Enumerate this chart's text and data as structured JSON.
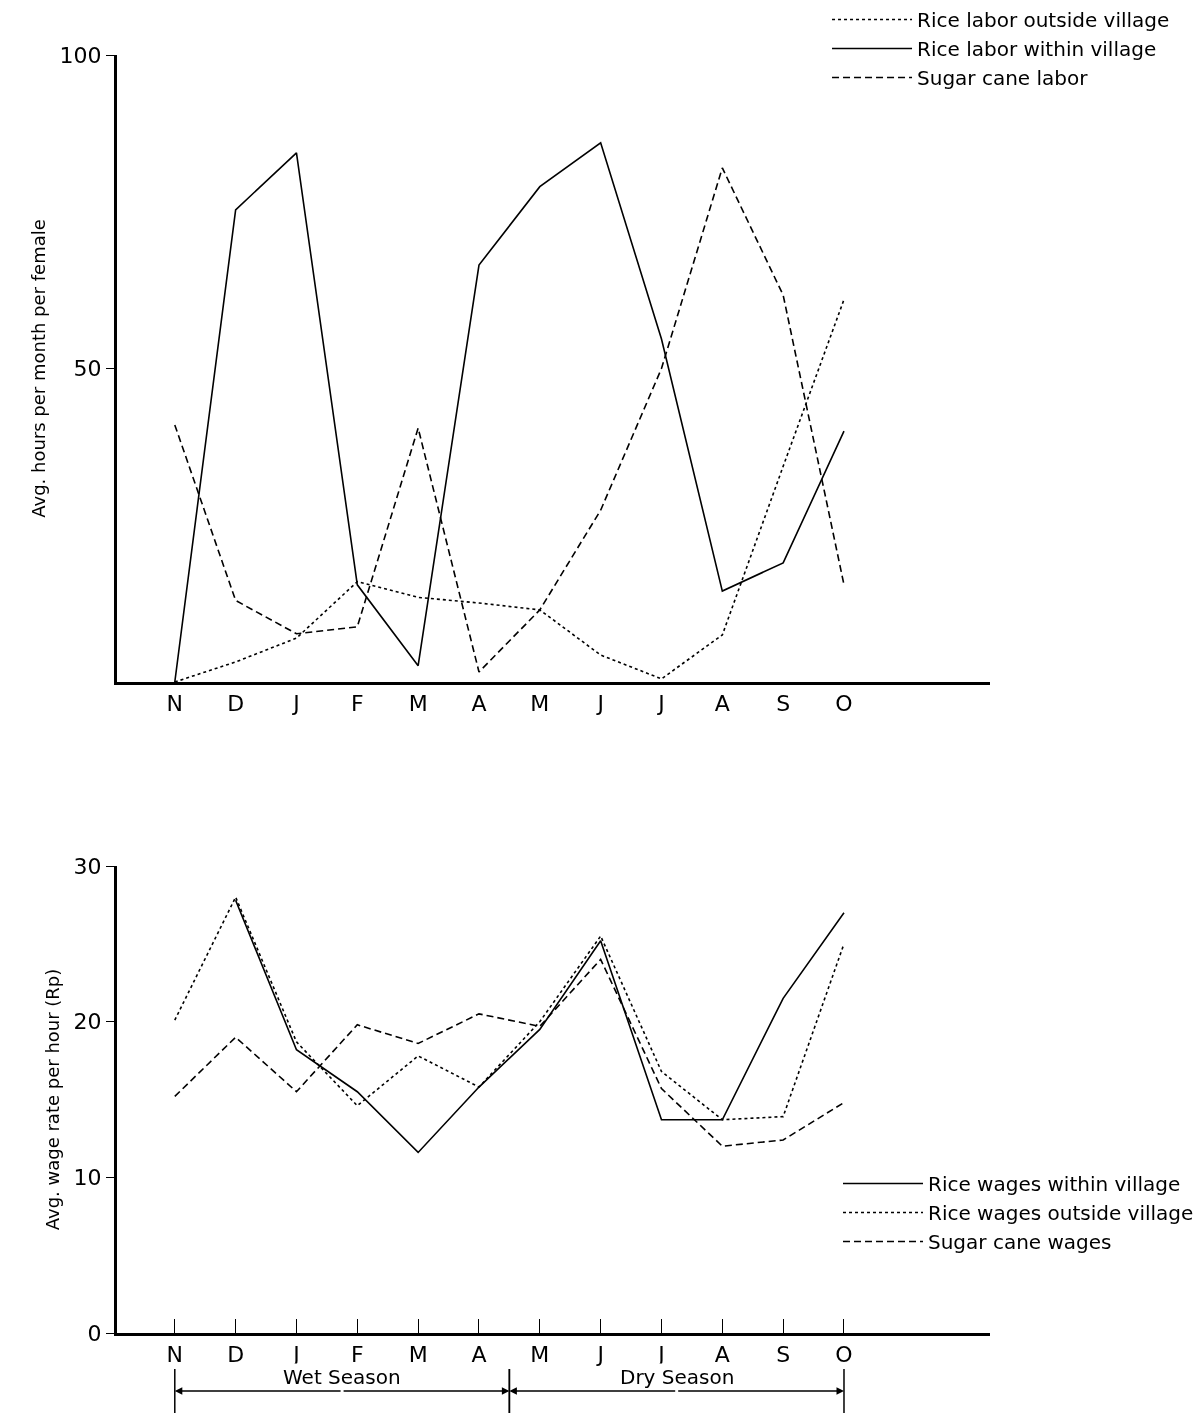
{
  "chart_data": [
    {
      "type": "line",
      "ylabel": "Avg. hours per month per female",
      "categories": [
        "N",
        "D",
        "J",
        "F",
        "M",
        "A",
        "M",
        "J",
        "J",
        "A",
        "S",
        "O"
      ],
      "ylim": [
        0,
        100
      ],
      "yticks": [
        50,
        100
      ],
      "grid": false,
      "legend": "top right",
      "marker": "none",
      "series": [
        {
          "name": "Rice labor outside village",
          "color": "#000000",
          "line_style": "dotted",
          "values": [
            0,
            3.2,
            7,
            16,
            13.5,
            12.6,
            11.5,
            4.3,
            0.5,
            7.5,
            34.4,
            61
          ]
        },
        {
          "name": "Rice labor within village",
          "color": "#000000",
          "line_style": "solid",
          "values": [
            0,
            75.3,
            84.4,
            15.5,
            2.6,
            66.5,
            79,
            86,
            54.7,
            14.5,
            19,
            40
          ]
        },
        {
          "name": "Sugar cane labor",
          "color": "#000000",
          "line_style": "dashed",
          "values": [
            41,
            13,
            7.7,
            8.8,
            40.5,
            1.6,
            11.5,
            27.4,
            50,
            82,
            61.7,
            15.5
          ]
        }
      ]
    },
    {
      "type": "line",
      "ylabel": "Avg. wage rate per hour (Rp)",
      "categories": [
        "N",
        "D",
        "J",
        "F",
        "M",
        "A",
        "M",
        "J",
        "J",
        "A",
        "S",
        "O"
      ],
      "ylim": [
        0,
        30
      ],
      "yticks": [
        0,
        10,
        20,
        30
      ],
      "grid": false,
      "legend": "right",
      "marker": "none",
      "annotations": [
        "Wet Season",
        "Dry Season"
      ],
      "series": [
        {
          "name": "Rice wages within village",
          "color": "#000000",
          "line_style": "solid",
          "values": [
            null,
            27.8,
            18.2,
            15.5,
            11.6,
            15.8,
            19.5,
            25.2,
            13.7,
            13.7,
            21.5,
            27
          ]
        },
        {
          "name": "Rice wages outside village",
          "color": "#000000",
          "line_style": "dotted",
          "values": [
            20.1,
            28,
            18.7,
            14.6,
            17.8,
            15.8,
            20,
            25.5,
            16.8,
            13.7,
            13.9,
            25
          ]
        },
        {
          "name": "Sugar cane wages",
          "color": "#000000",
          "line_style": "dashed",
          "values": [
            15.2,
            19,
            15.5,
            19.8,
            18.6,
            20.5,
            19.7,
            24,
            15.7,
            12,
            12.4,
            14.8
          ]
        }
      ]
    }
  ]
}
